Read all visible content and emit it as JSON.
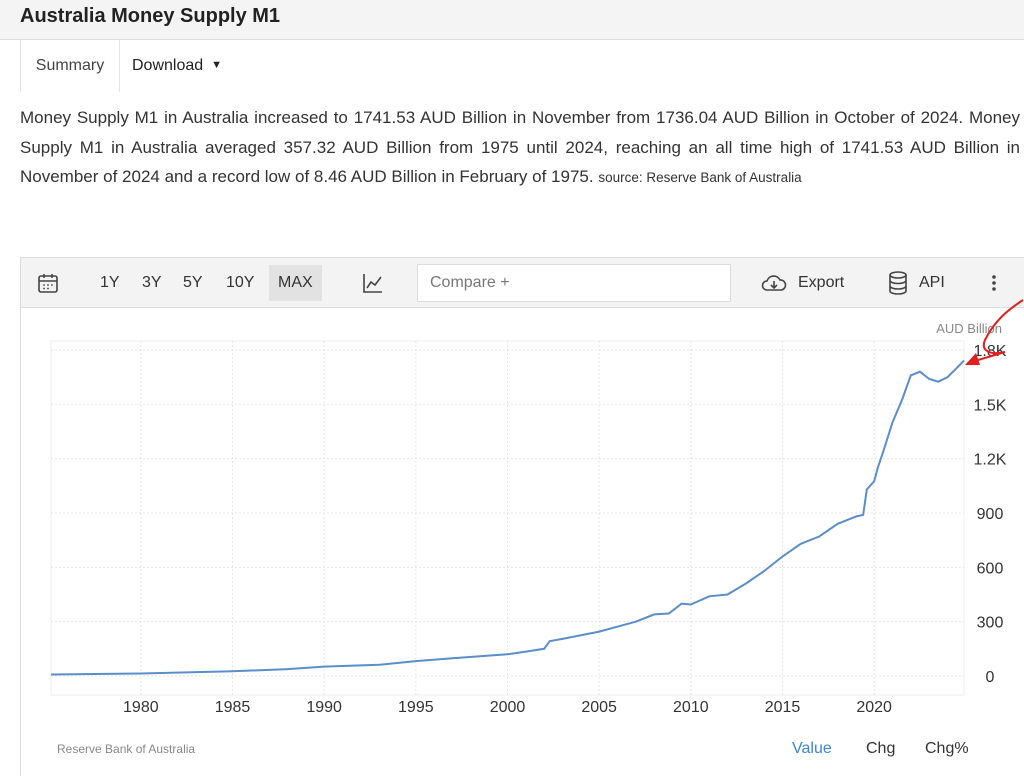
{
  "header": {
    "title": "Australia Money Supply M1"
  },
  "tabs": {
    "summary": "Summary",
    "download": "Download"
  },
  "description": {
    "text": "Money Supply M1 in Australia increased to 1741.53 AUD Billion in November from 1736.04 AUD Billion in October of 2024. Money Supply M1 in Australia averaged 357.32 AUD Billion from 1975 until 2024, reaching an all time high of 1741.53 AUD Billion in November of 2024 and a record low of 8.46 AUD Billion in February of 1975.",
    "source": "source: Reserve Bank of Australia"
  },
  "toolbar": {
    "ranges": [
      "1Y",
      "3Y",
      "5Y",
      "10Y",
      "MAX"
    ],
    "active_range": "MAX",
    "compare_placeholder": "Compare +",
    "export_label": "Export",
    "api_label": "API"
  },
  "footer": {
    "source": "Reserve Bank of Australia",
    "tabs": [
      "Value",
      "Chg",
      "Chg%"
    ],
    "active_tab": "Value"
  },
  "colors": {
    "line": "#5b8ec9",
    "accent": "#3a86d0",
    "annotation": "#e02020"
  },
  "chart_data": {
    "type": "line",
    "ylabel": "AUD Billion",
    "ylim": [
      0,
      1800
    ],
    "xlim": [
      1975.1,
      2024.9
    ],
    "x_ticks": [
      1980,
      1985,
      1990,
      1995,
      2000,
      2005,
      2010,
      2015,
      2020
    ],
    "y_ticks": [
      0,
      300,
      600,
      900,
      1200,
      1500,
      1800
    ],
    "y_tick_labels": [
      "0",
      "300",
      "600",
      "900",
      "1.2K",
      "1.5K",
      "1.8K"
    ],
    "grid": true,
    "series": [
      {
        "x": [
          1975.1,
          1980,
          1985,
          1988,
          1990,
          1993,
          1995,
          1997,
          2000,
          2001,
          2002,
          2002.3,
          2003,
          2005,
          2007,
          2008,
          2008.8,
          2009.5,
          2010,
          2011,
          2012,
          2013,
          2014,
          2015,
          2016,
          2017,
          2018,
          2019,
          2019.4,
          2019.6,
          2020,
          2020.2,
          2020.5,
          2021,
          2021.5,
          2022,
          2022.5,
          2023,
          2023.5,
          2024,
          2024.5,
          2024.9
        ],
        "y": [
          8.46,
          14,
          26,
          38,
          52,
          62,
          82,
          98,
          120,
          135,
          150,
          192,
          205,
          245,
          300,
          340,
          345,
          400,
          395,
          440,
          450,
          510,
          580,
          660,
          730,
          770,
          840,
          880,
          890,
          1030,
          1075,
          1150,
          1240,
          1400,
          1520,
          1660,
          1680,
          1640,
          1625,
          1650,
          1700,
          1741.53
        ]
      }
    ]
  }
}
